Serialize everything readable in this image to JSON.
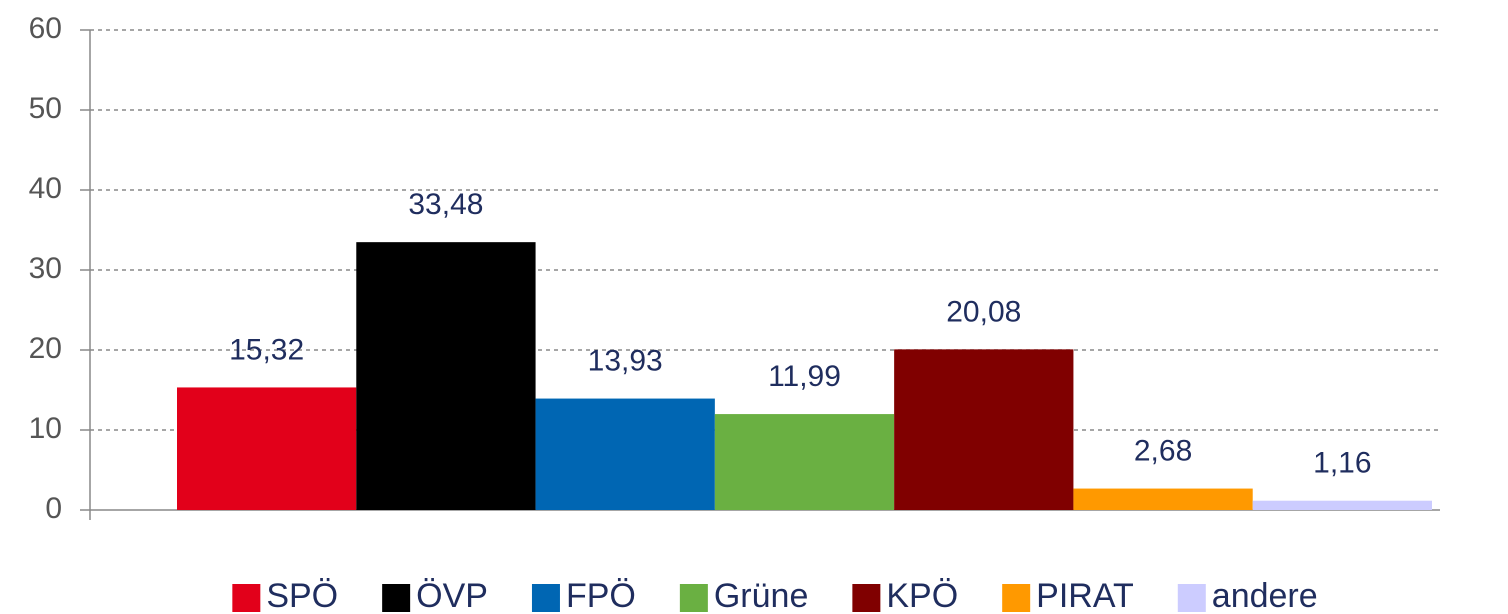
{
  "chart_data": {
    "type": "bar",
    "series": [
      {
        "name": "SPÖ",
        "color": "#e2001a",
        "values": [
          15.32
        ],
        "value_labels": [
          "15,32"
        ]
      },
      {
        "name": "ÖVP",
        "color": "#000000",
        "values": [
          33.48
        ],
        "value_labels": [
          "33,48"
        ]
      },
      {
        "name": "FPÖ",
        "color": "#0066b3",
        "values": [
          13.93
        ],
        "value_labels": [
          "13,93"
        ]
      },
      {
        "name": "Grüne",
        "color": "#6ab042",
        "values": [
          11.99
        ],
        "value_labels": [
          "11,99"
        ]
      },
      {
        "name": "KPÖ",
        "color": "#800000",
        "values": [
          20.08
        ],
        "value_labels": [
          "20,08"
        ]
      },
      {
        "name": "PIRAT",
        "color": "#ff9900",
        "values": [
          2.68
        ],
        "value_labels": [
          "2,68"
        ]
      },
      {
        "name": "andere",
        "color": "#ccccff",
        "values": [
          1.16
        ],
        "value_labels": [
          "1,16"
        ]
      }
    ],
    "ylim": [
      0,
      60
    ],
    "yticks": [
      0,
      10,
      20,
      30,
      40,
      50,
      60
    ],
    "grid": true,
    "legend": "bottom"
  }
}
